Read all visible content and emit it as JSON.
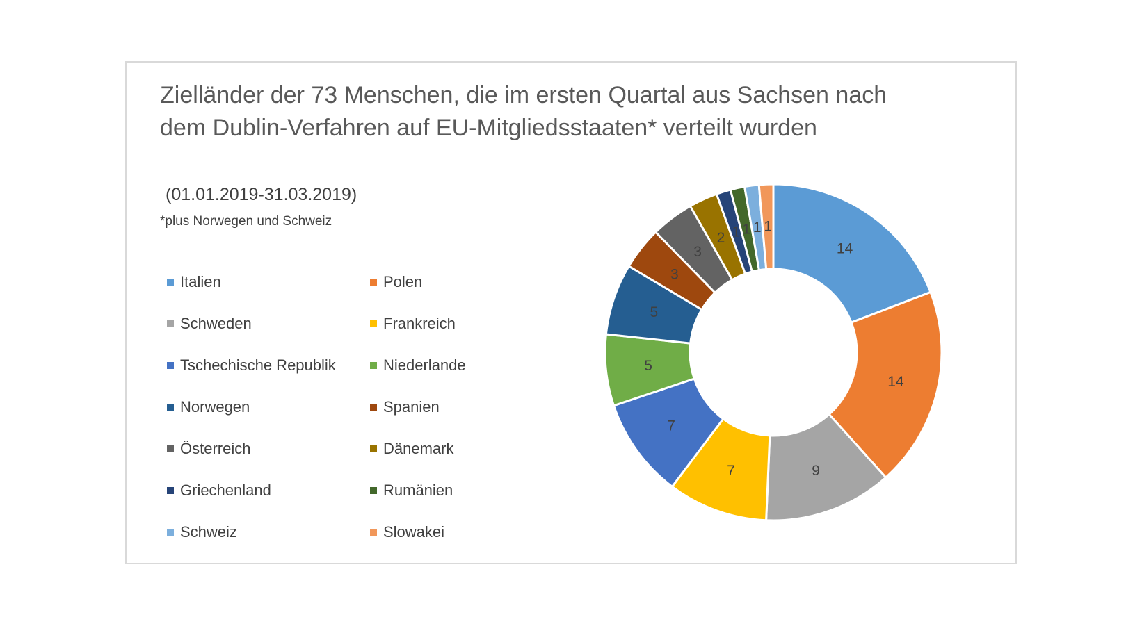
{
  "chart_data": {
    "type": "pie",
    "variant": "donut",
    "title": "Zielländer der 73 Menschen, die im ersten Quartal aus Sachsen nach dem Dublin-Verfahren auf EU-Mitgliedsstaaten* verteilt wurden",
    "subtitle": "(01.01.2019-31.03.2019)",
    "note": "*plus Norwegen und Schweiz",
    "legend_position": "left",
    "data_labels": true,
    "categories": [
      "Italien",
      "Polen",
      "Schweden",
      "Frankreich",
      "Tschechische Republik",
      "Niederlande",
      "Norwegen",
      "Spanien",
      "Österreich",
      "Dänemark",
      "Griechenland",
      "Rumänien",
      "Schweiz",
      "Slowakei"
    ],
    "values": [
      14,
      14,
      9,
      7,
      7,
      5,
      5,
      3,
      3,
      2,
      1,
      1,
      1,
      1
    ],
    "colors": [
      "#5B9BD5",
      "#ED7D31",
      "#A5A5A5",
      "#FFC000",
      "#4472C4",
      "#70AD47",
      "#255E91",
      "#9E480E",
      "#636363",
      "#997300",
      "#264478",
      "#43682B",
      "#7CAFDD",
      "#F1975A"
    ]
  }
}
